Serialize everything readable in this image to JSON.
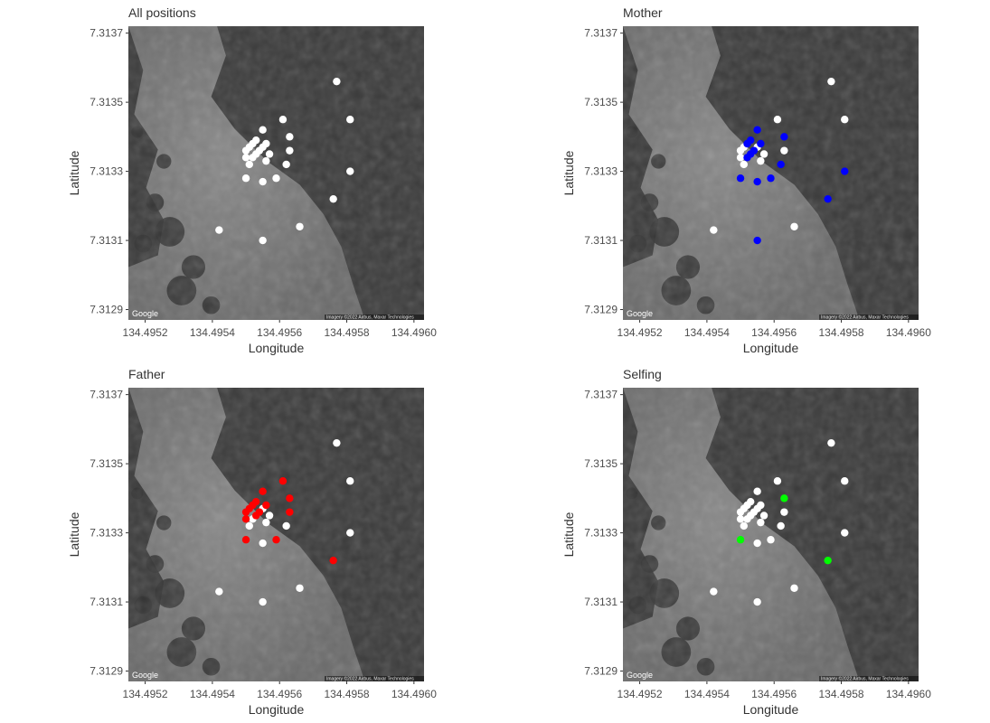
{
  "figure": {
    "colors": {
      "background": "#ffffff",
      "map_dark": "#3a3a3a",
      "map_water": "#6e6e6e",
      "default_point": "#ffffff",
      "mother_point": "#0000ff",
      "father_point": "#ff0000",
      "selfing_point": "#00ff00"
    },
    "map_logo": "Google",
    "map_attribution": "Imagery ©2022 Airbus, Maxar Technologies"
  },
  "chart_data": [
    {
      "type": "scatter",
      "title": "All positions",
      "xlabel": "Longitude",
      "ylabel": "Latitude",
      "xlim": [
        134.49515,
        134.49603
      ],
      "ylim": [
        7.31287,
        7.31372
      ],
      "x_ticks": [
        "134.4952",
        "134.4954",
        "134.4956",
        "134.4958",
        "134.4960"
      ],
      "y_ticks": [
        "7.3137",
        "7.3135",
        "7.3133",
        "7.3131",
        "7.3129"
      ],
      "highlight": null
    },
    {
      "type": "scatter",
      "title": "Mother",
      "xlabel": "Longitude",
      "ylabel": "Latitude",
      "xlim": [
        134.49515,
        134.49603
      ],
      "ylim": [
        7.31287,
        7.31372
      ],
      "x_ticks": [
        "134.4952",
        "134.4954",
        "134.4956",
        "134.4958",
        "134.4960"
      ],
      "y_ticks": [
        "7.3137",
        "7.3135",
        "7.3133",
        "7.3131",
        "7.3129"
      ],
      "highlight": "mother"
    },
    {
      "type": "scatter",
      "title": "Father",
      "xlabel": "Longitude",
      "ylabel": "Latitude",
      "xlim": [
        134.49515,
        134.49603
      ],
      "ylim": [
        7.31287,
        7.31372
      ],
      "x_ticks": [
        "134.4952",
        "134.4954",
        "134.4956",
        "134.4958",
        "134.4960"
      ],
      "y_ticks": [
        "7.3137",
        "7.3135",
        "7.3133",
        "7.3131",
        "7.3129"
      ],
      "highlight": "father"
    },
    {
      "type": "scatter",
      "title": "Selfing",
      "xlabel": "Longitude",
      "ylabel": "Latitude",
      "xlim": [
        134.49515,
        134.49603
      ],
      "ylim": [
        7.31287,
        7.31372
      ],
      "x_ticks": [
        "134.4952",
        "134.4954",
        "134.4956",
        "134.4958",
        "134.4960"
      ],
      "y_ticks": [
        "7.3137",
        "7.3135",
        "7.3133",
        "7.3131",
        "7.3129"
      ],
      "highlight": "selfing"
    }
  ],
  "points": [
    {
      "x": 134.49577,
      "y": 7.31356,
      "mother": false,
      "father": false,
      "selfing": false
    },
    {
      "x": 134.49561,
      "y": 7.31345,
      "mother": false,
      "father": true,
      "selfing": false
    },
    {
      "x": 134.49581,
      "y": 7.31345,
      "mother": false,
      "father": false,
      "selfing": false
    },
    {
      "x": 134.49555,
      "y": 7.31342,
      "mother": true,
      "father": true,
      "selfing": false
    },
    {
      "x": 134.49563,
      "y": 7.3134,
      "mother": true,
      "father": true,
      "selfing": true
    },
    {
      "x": 134.49556,
      "y": 7.31338,
      "mother": true,
      "father": true,
      "selfing": false
    },
    {
      "x": 134.49553,
      "y": 7.31339,
      "mother": true,
      "father": true,
      "selfing": false
    },
    {
      "x": 134.49552,
      "y": 7.31338,
      "mother": true,
      "father": true,
      "selfing": false
    },
    {
      "x": 134.49554,
      "y": 7.31336,
      "mother": true,
      "father": true,
      "selfing": false
    },
    {
      "x": 134.49551,
      "y": 7.31337,
      "mother": false,
      "father": true,
      "selfing": false
    },
    {
      "x": 134.49555,
      "y": 7.31337,
      "mother": false,
      "father": false,
      "selfing": false
    },
    {
      "x": 134.49557,
      "y": 7.31335,
      "mother": false,
      "father": false,
      "selfing": false
    },
    {
      "x": 134.49553,
      "y": 7.31335,
      "mother": true,
      "father": true,
      "selfing": false
    },
    {
      "x": 134.4955,
      "y": 7.31336,
      "mother": false,
      "father": true,
      "selfing": false
    },
    {
      "x": 134.49556,
      "y": 7.31333,
      "mother": false,
      "father": false,
      "selfing": false
    },
    {
      "x": 134.49552,
      "y": 7.31334,
      "mother": true,
      "father": false,
      "selfing": false
    },
    {
      "x": 134.49563,
      "y": 7.31336,
      "mother": false,
      "father": true,
      "selfing": false
    },
    {
      "x": 134.49562,
      "y": 7.31332,
      "mother": true,
      "father": false,
      "selfing": false
    },
    {
      "x": 134.4955,
      "y": 7.31334,
      "mother": false,
      "father": true,
      "selfing": false
    },
    {
      "x": 134.49551,
      "y": 7.31332,
      "mother": false,
      "father": false,
      "selfing": false
    },
    {
      "x": 134.49559,
      "y": 7.31328,
      "mother": true,
      "father": true,
      "selfing": false
    },
    {
      "x": 134.49555,
      "y": 7.31327,
      "mother": true,
      "father": false,
      "selfing": false
    },
    {
      "x": 134.4955,
      "y": 7.31328,
      "mother": true,
      "father": true,
      "selfing": true
    },
    {
      "x": 134.49581,
      "y": 7.3133,
      "mother": true,
      "father": false,
      "selfing": false
    },
    {
      "x": 134.49576,
      "y": 7.31322,
      "mother": true,
      "father": true,
      "selfing": true
    },
    {
      "x": 134.49542,
      "y": 7.31313,
      "mother": false,
      "father": false,
      "selfing": false
    },
    {
      "x": 134.49566,
      "y": 7.31314,
      "mother": false,
      "father": false,
      "selfing": false
    },
    {
      "x": 134.49555,
      "y": 7.3131,
      "mother": true,
      "father": false,
      "selfing": false
    }
  ]
}
